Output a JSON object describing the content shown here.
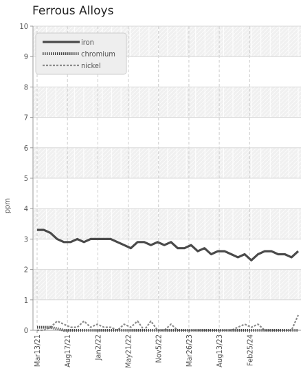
{
  "chart_data": {
    "type": "line",
    "title": "Ferrous Alloys",
    "xlabel": "",
    "ylabel": "ppm",
    "ylim": [
      0,
      10
    ],
    "y_ticks": [
      "0",
      "1",
      "2",
      "3",
      "4",
      "5",
      "6",
      "7",
      "8",
      "9",
      "10"
    ],
    "x_tick_labels": [
      "Mar13/21",
      "Aug17/21",
      "Jan2/22",
      "May21/22",
      "Nov5/22",
      "Mar26/23",
      "Aug13/23",
      "Feb25/24"
    ],
    "grid": true,
    "legend_position": "top-left",
    "series": [
      {
        "name": "iron",
        "color": "#4a4a4a",
        "style": "solid",
        "values": [
          3.3,
          3.3,
          3.2,
          3.0,
          2.9,
          2.9,
          3.0,
          2.9,
          3.0,
          3.0,
          3.0,
          3.0,
          2.9,
          2.8,
          2.7,
          2.9,
          2.9,
          2.8,
          2.9,
          2.8,
          2.9,
          2.7,
          2.7,
          2.8,
          2.6,
          2.7,
          2.5,
          2.6,
          2.6,
          2.5,
          2.4,
          2.5,
          2.3,
          2.5,
          2.6,
          2.6,
          2.5,
          2.5,
          2.4,
          2.6
        ]
      },
      {
        "name": "chromium",
        "color": "#4a4a4a",
        "style": "dotted",
        "values": [
          0.1,
          0.1,
          0.1,
          0.05,
          0,
          0,
          0,
          0,
          0,
          0,
          0,
          0,
          0,
          0,
          0,
          0,
          0,
          0,
          0,
          0,
          0,
          0,
          0,
          0,
          0,
          0,
          0,
          0,
          0,
          0,
          0,
          0,
          0,
          0,
          0,
          0,
          0,
          0,
          0,
          0
        ]
      },
      {
        "name": "nickel",
        "color": "#8a8a8a",
        "style": "dashed",
        "values": [
          0,
          0,
          0.1,
          0.3,
          0.2,
          0.1,
          0.1,
          0.3,
          0.1,
          0.2,
          0.1,
          0.1,
          0,
          0.2,
          0.1,
          0.3,
          0,
          0.3,
          0,
          0,
          0.2,
          0,
          0,
          0,
          0,
          0,
          0,
          0,
          0,
          0,
          0.1,
          0.2,
          0.1,
          0.2,
          0,
          0,
          0,
          0,
          0,
          0.5
        ]
      }
    ]
  }
}
